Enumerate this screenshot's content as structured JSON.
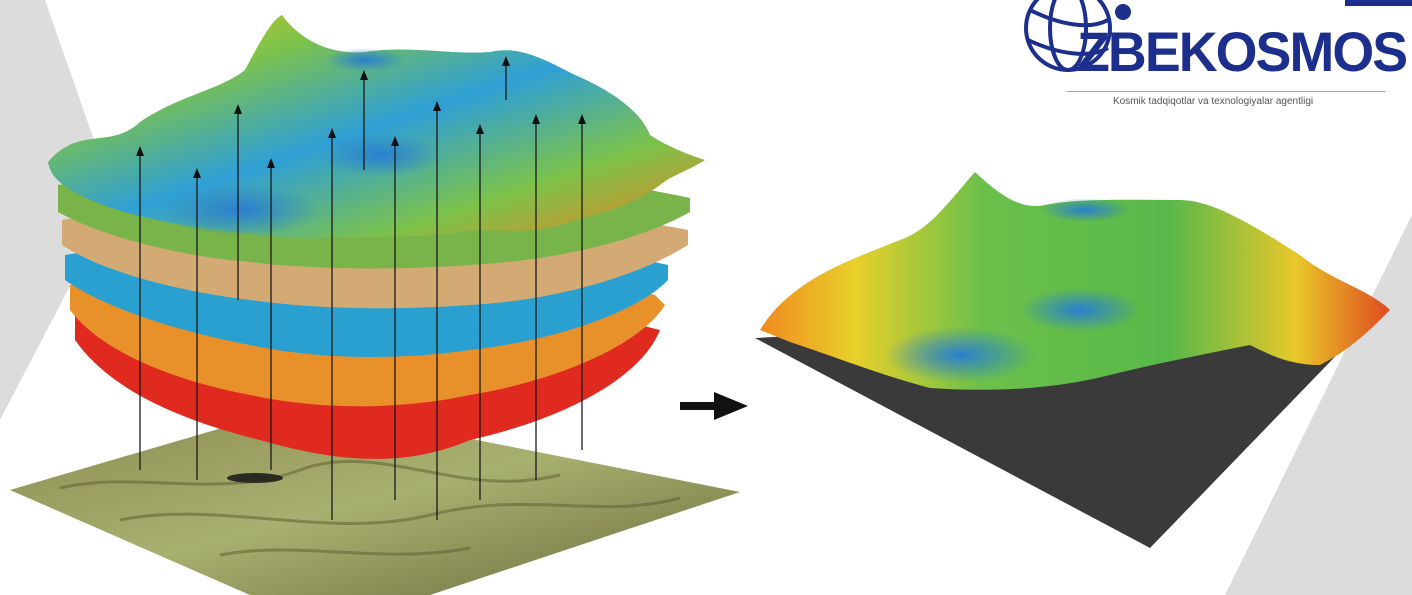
{
  "logo": {
    "wordmark": "ZBEKOSMOS",
    "tagline": "Kosmik tadqiqotlar va texnologiyalar agentligi"
  },
  "colors": {
    "brand_blue": "#1d2f8c",
    "background_band": "#dcdcdc",
    "dark_base": "#3a3a3a"
  },
  "diagram": {
    "left_panel": "stacked-layers",
    "right_panel": "single-surface",
    "connector": "arrow-right"
  }
}
